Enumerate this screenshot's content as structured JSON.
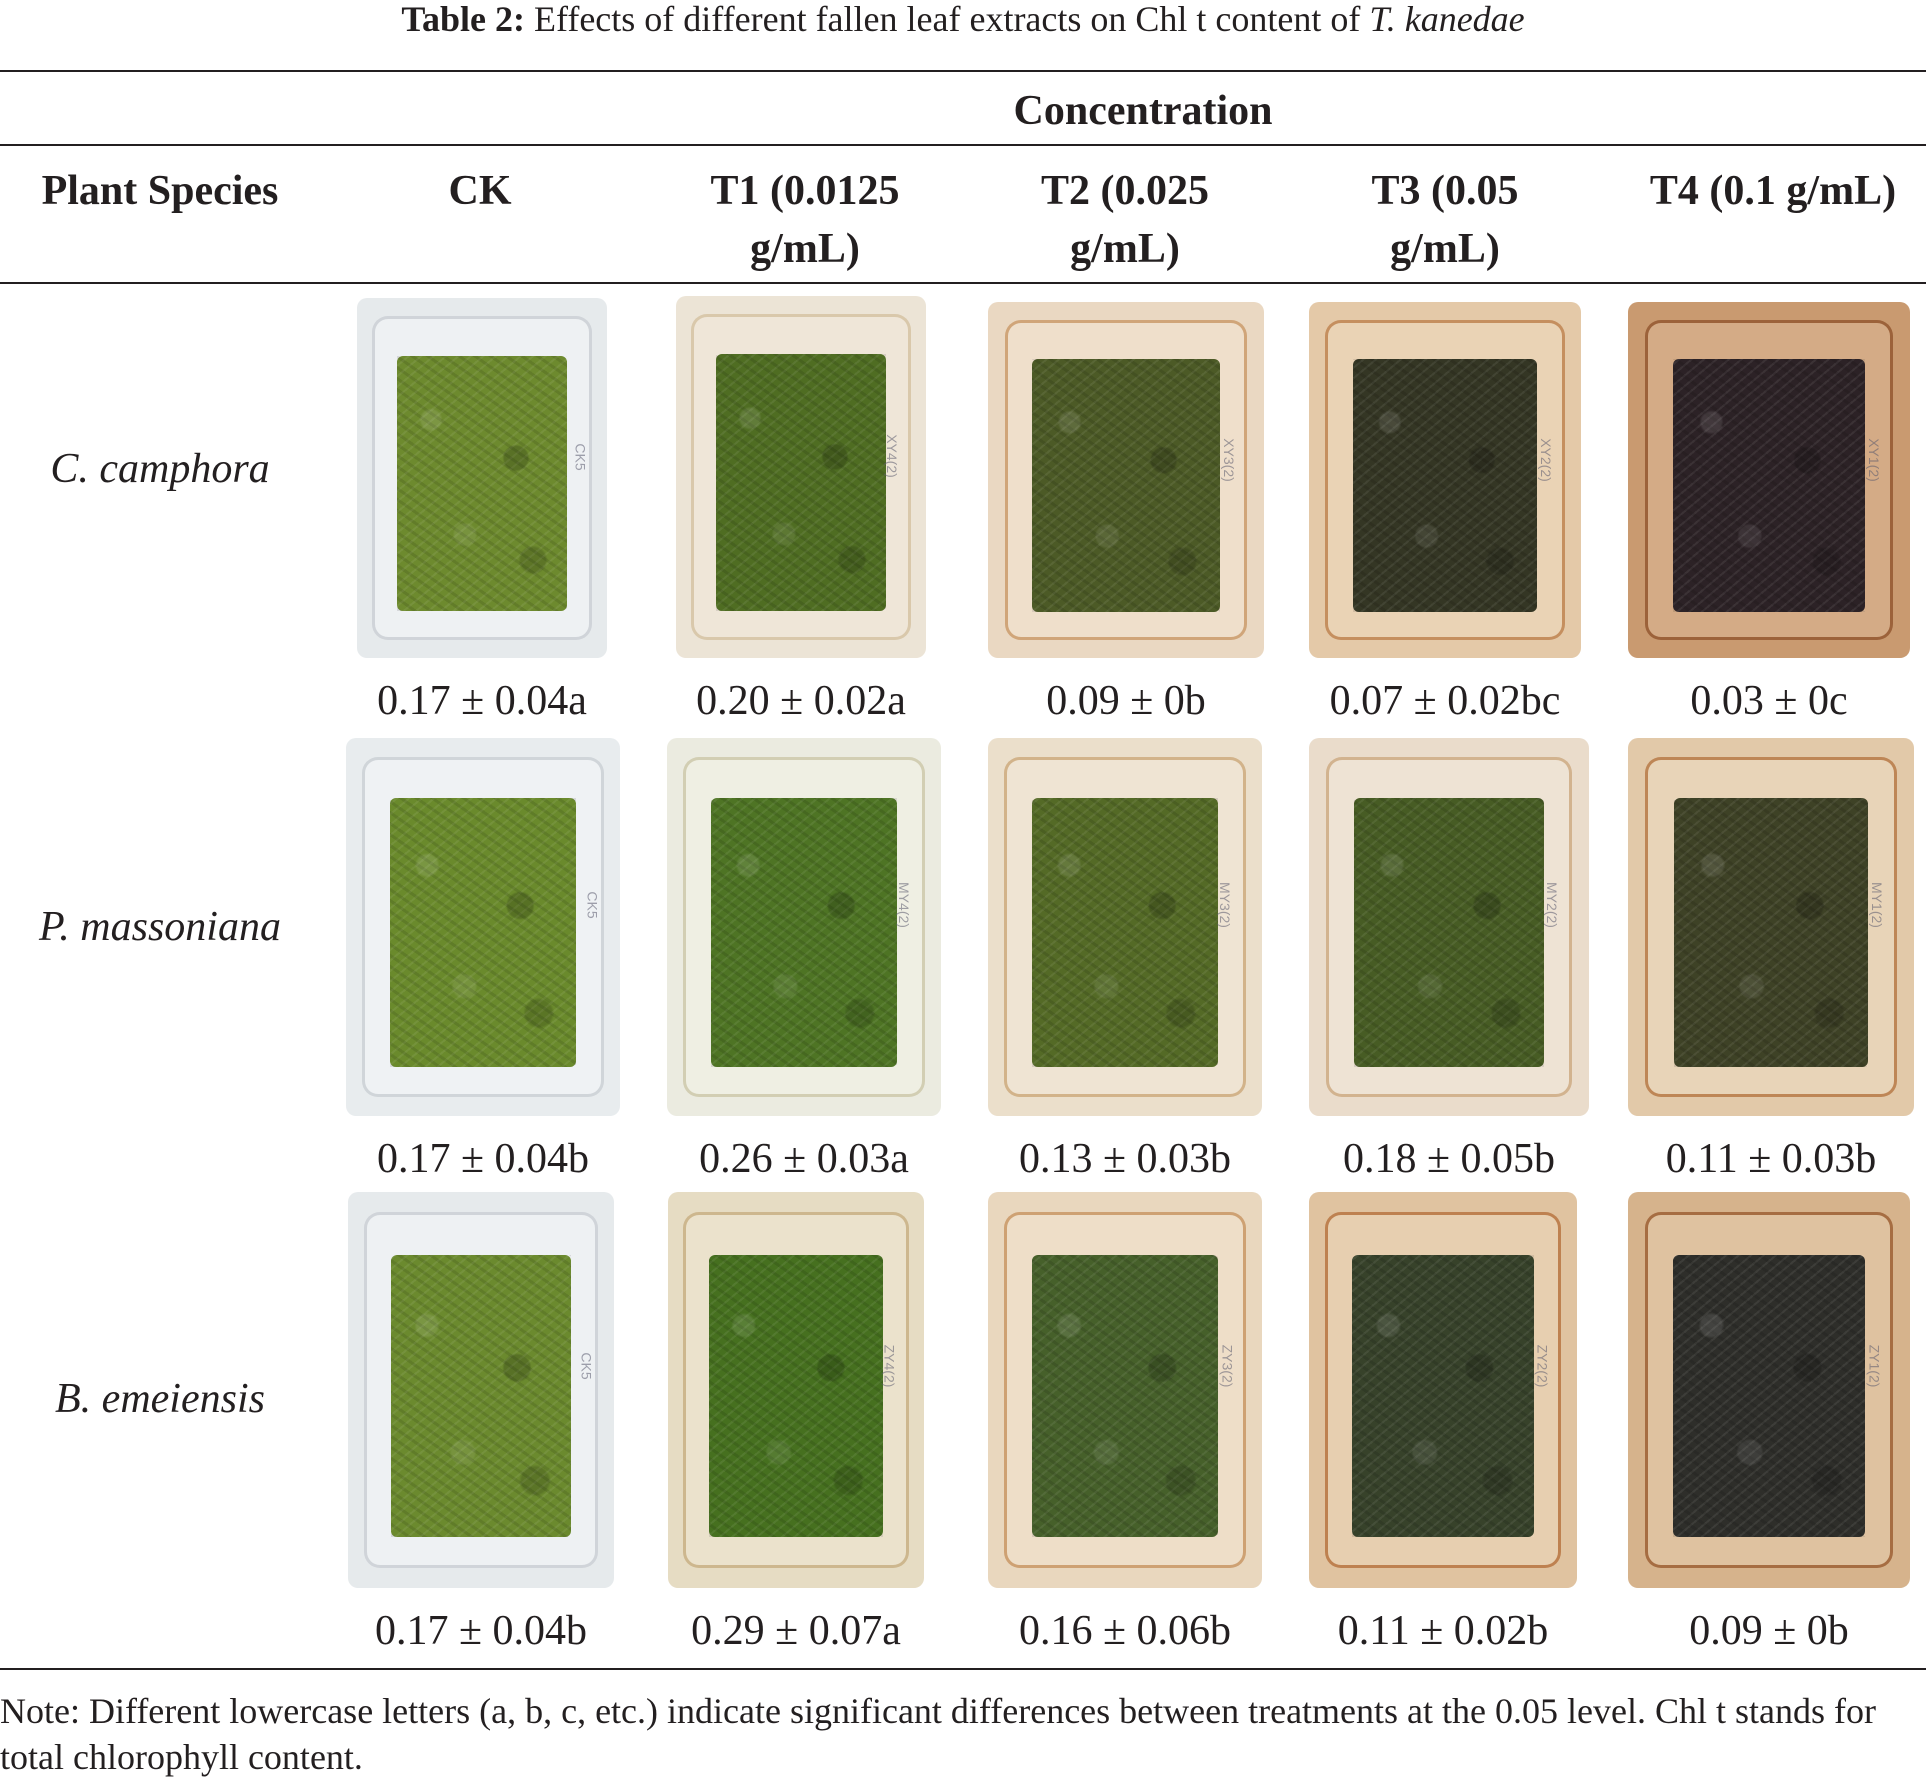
{
  "caption": {
    "label": "Table 2:",
    "text": " Effects of different fallen leaf extracts on Chl t content of ",
    "species": "T. kanedae"
  },
  "group_header": "Concentration",
  "columns": [
    "Plant Species",
    "CK",
    "T1 (0.0125 g/mL)",
    "T2 (0.025 g/mL)",
    "T3 (0.05 g/mL)",
    "T4 (0.1 g/mL)"
  ],
  "rows": [
    {
      "species": "C. camphora",
      "values": [
        "0.17 ± 0.04a",
        "0.20 ± 0.02a",
        "0.09 ± 0b",
        "0.07 ± 0.02bc",
        "0.03 ± 0c"
      ]
    },
    {
      "species": "P. massoniana",
      "values": [
        "0.17 ± 0.04b",
        "0.26 ± 0.03a",
        "0.13 ± 0.03b",
        "0.18 ± 0.05b",
        "0.11 ± 0.03b"
      ]
    },
    {
      "species": "B. emeiensis",
      "values": [
        "0.17 ± 0.04b",
        "0.29 ± 0.07a",
        "0.16 ± 0.06b",
        "0.11 ± 0.02b",
        "0.09 ± 0b"
      ]
    }
  ],
  "note": "Note: Different lowercase letters (a, b, c, etc.) indicate significant differences between treatments at the 0.05 level. Chl t stands for total chlorophyll content."
}
